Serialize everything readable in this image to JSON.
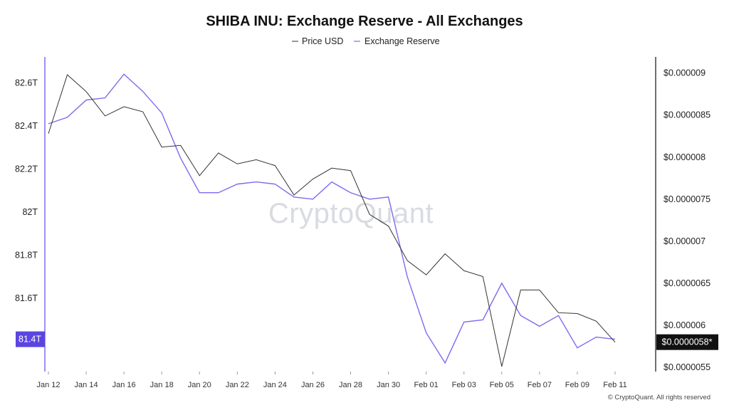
{
  "chart_data": {
    "type": "line",
    "title": "SHIBA INU: Exchange Reserve - All Exchanges",
    "legend": {
      "placement": "top-center",
      "entries": [
        {
          "name": "Price USD",
          "color": "#333333"
        },
        {
          "name": "Exchange Reserve",
          "color": "#7b6cf0"
        }
      ]
    },
    "x_tick_labels": [
      "Jan 12",
      "Jan 14",
      "Jan 16",
      "Jan 18",
      "Jan 20",
      "Jan 22",
      "Jan 24",
      "Jan 26",
      "Jan 28",
      "Jan 30",
      "Feb 01",
      "Feb 03",
      "Feb 05",
      "Feb 07",
      "Feb 09",
      "Feb 11"
    ],
    "x": [
      "Jan 12",
      "Jan 13",
      "Jan 14",
      "Jan 15",
      "Jan 16",
      "Jan 17",
      "Jan 18",
      "Jan 19",
      "Jan 20",
      "Jan 21",
      "Jan 22",
      "Jan 23",
      "Jan 24",
      "Jan 25",
      "Jan 26",
      "Jan 27",
      "Jan 28",
      "Jan 29",
      "Jan 30",
      "Jan 31",
      "Feb 01",
      "Feb 02",
      "Feb 03",
      "Feb 04",
      "Feb 05",
      "Feb 06",
      "Feb 07",
      "Feb 08",
      "Feb 09",
      "Feb 10",
      "Feb 11"
    ],
    "series": [
      {
        "name": "Exchange Reserve",
        "axis": "left",
        "color": "#7b6cf0",
        "unit": "T",
        "values": [
          82.41,
          82.44,
          82.52,
          82.53,
          82.64,
          82.56,
          82.46,
          82.25,
          82.09,
          82.09,
          82.13,
          82.14,
          82.13,
          82.07,
          82.06,
          82.14,
          82.09,
          82.06,
          82.07,
          81.7,
          81.44,
          81.3,
          81.49,
          81.5,
          81.67,
          81.52,
          81.47,
          81.52,
          81.37,
          81.42,
          81.41
        ]
      },
      {
        "name": "Price USD",
        "axis": "right",
        "color": "#333333",
        "unit": "$",
        "values": [
          8.28e-06,
          8.98e-06,
          8.78e-06,
          8.49e-06,
          8.6e-06,
          8.54e-06,
          8.12e-06,
          8.14e-06,
          7.78e-06,
          8.05e-06,
          7.92e-06,
          7.97e-06,
          7.9e-06,
          7.55e-06,
          7.74e-06,
          7.87e-06,
          7.84e-06,
          7.32e-06,
          7.18e-06,
          6.77e-06,
          6.6e-06,
          6.85e-06,
          6.65e-06,
          6.58e-06,
          5.51e-06,
          6.42e-06,
          6.42e-06,
          6.15e-06,
          6.14e-06,
          6.05e-06,
          5.8e-06
        ]
      }
    ],
    "y_left": {
      "ticks": [
        {
          "value": 81.6,
          "label": "81.6T"
        },
        {
          "value": 81.8,
          "label": "81.8T"
        },
        {
          "value": 82.0,
          "label": "82T"
        },
        {
          "value": 82.2,
          "label": "82.2T"
        },
        {
          "value": 82.4,
          "label": "82.4T"
        },
        {
          "value": 82.6,
          "label": "82.6T"
        }
      ],
      "range": [
        81.26,
        82.72
      ],
      "current_badge": {
        "value": 81.41,
        "label": "81.4T",
        "color": "#5b45e0"
      }
    },
    "y_right": {
      "ticks": [
        {
          "value": 5.5e-06,
          "label": "$0.0000055"
        },
        {
          "value": 6e-06,
          "label": "$0.000006"
        },
        {
          "value": 6.5e-06,
          "label": "$0.0000065"
        },
        {
          "value": 7e-06,
          "label": "$0.000007"
        },
        {
          "value": 7.5e-06,
          "label": "$0.0000075"
        },
        {
          "value": 8e-06,
          "label": "$0.000008"
        },
        {
          "value": 8.5e-06,
          "label": "$0.0000085"
        },
        {
          "value": 9e-06,
          "label": "$0.000009"
        }
      ],
      "range": [
        5.45e-06,
        9.192e-06
      ],
      "current_badge": {
        "value": 5.8e-06,
        "label": "$0.0000058*",
        "color": "#111111"
      }
    },
    "grid": false,
    "watermark": "CryptoQuant",
    "copyright": "© CryptoQuant. All rights reserved"
  }
}
